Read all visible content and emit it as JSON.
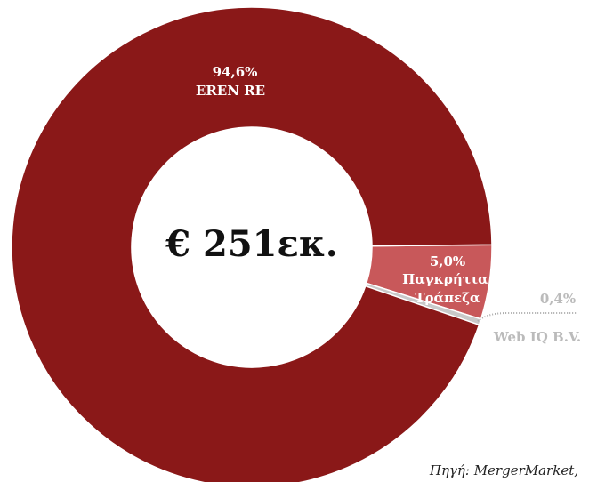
{
  "chart_data": {
    "type": "pie",
    "center_label": "€ 251εκ.",
    "source": "Πηγή: MergerMarket,",
    "categories": [
      "Παγκρήτια Τράπεζα",
      "Web IQ B.V.",
      "EREN RE"
    ],
    "values": [
      5.0,
      0.4,
      94.6
    ],
    "value_labels": [
      "5,0%",
      "0,4%",
      "94,6%"
    ],
    "colors": [
      "#c8585a",
      "#c9c9c9",
      "#8a1818"
    ]
  }
}
